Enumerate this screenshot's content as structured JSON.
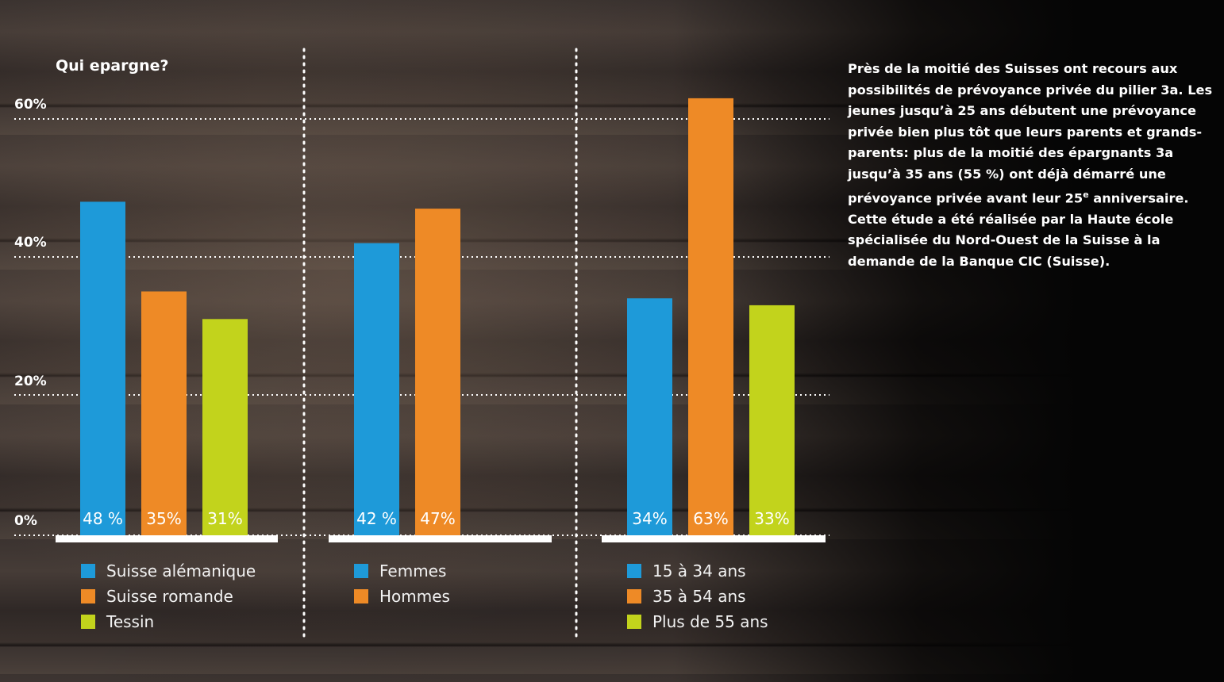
{
  "chart_data": {
    "type": "bar",
    "title": "Qui epargne?",
    "ylim": [
      0,
      60
    ],
    "yticks": [
      {
        "value": 0,
        "label": "0%"
      },
      {
        "value": 20,
        "label": "20%"
      },
      {
        "value": 40,
        "label": "40%"
      },
      {
        "value": 60,
        "label": "60%"
      }
    ],
    "grid": true,
    "groups": [
      {
        "bars": [
          {
            "name": "Suisse alémanique",
            "value": 48,
            "label": "48 %",
            "color": "#1e9ad9"
          },
          {
            "name": "Suisse romande",
            "value": 35,
            "label": "35%",
            "color": "#ee8a26"
          },
          {
            "name": "Tessin",
            "value": 31,
            "label": "31%",
            "color": "#c2d31c"
          }
        ]
      },
      {
        "bars": [
          {
            "name": "Femmes",
            "value": 42,
            "label": "42 %",
            "color": "#1e9ad9"
          },
          {
            "name": "Hommes",
            "value": 47,
            "label": "47%",
            "color": "#ee8a26"
          }
        ]
      },
      {
        "bars": [
          {
            "name": "15 à 34 ans",
            "value": 34,
            "label": "34%",
            "color": "#1e9ad9"
          },
          {
            "name": "35 à 54 ans",
            "value": 63,
            "label": "63%",
            "color": "#ee8a26"
          },
          {
            "name": "Plus de 55 ans",
            "value": 33,
            "label": "33%",
            "color": "#c2d31c"
          }
        ]
      }
    ]
  },
  "note": {
    "text_main": "Près de la moitié des Suisses ont recours aux possibilités de prévoyance privée du pilier 3a. Les jeunes jusqu’à 25 ans débutent une prévoyance privée bien plus tôt que leurs parents et grands-parents: plus de la moitié des épargnants 3a jusqu’à 35 ans (55 %) ont déjà démarré une prévoyance privée avant leur 25",
    "superscript": "e",
    "text_end": " anniversaire. Cette étude a été réalisée par la Haute école spécialisée du Nord-Ouest de la Suisse à la demande de la Banque CIC (Suisse)."
  }
}
